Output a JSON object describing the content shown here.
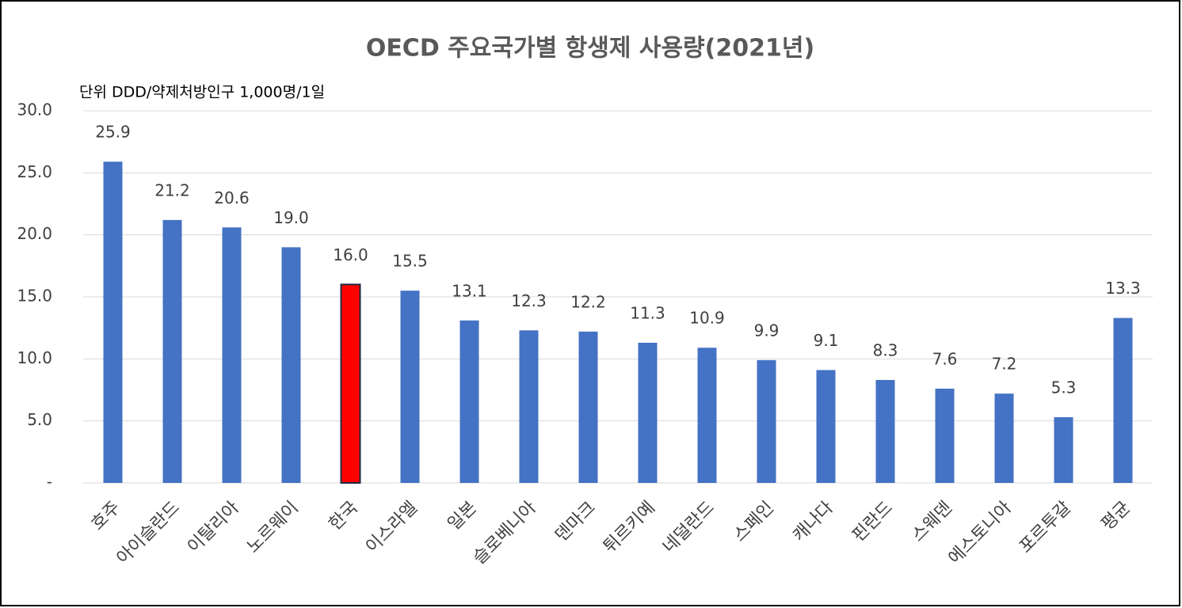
{
  "chart_data": {
    "type": "bar",
    "title": "OECD 주요국가별 항생제 사용량(2021년)",
    "subtitle": "단위  DDD/약제처방인구 1,000명/1일",
    "categories": [
      "호주",
      "아이슬란드",
      "이탈리아",
      "노르웨이",
      "한국",
      "이스라엘",
      "일본",
      "슬로베니아",
      "덴마크",
      "튀르키예",
      "네덜란드",
      "스페인",
      "캐나다",
      "핀란드",
      "스웨덴",
      "에스토니아",
      "포르투갈",
      "평균"
    ],
    "values": [
      25.9,
      21.2,
      20.6,
      19.0,
      16.0,
      15.5,
      13.1,
      12.3,
      12.2,
      11.3,
      10.9,
      9.9,
      9.1,
      8.3,
      7.6,
      7.2,
      5.3,
      13.3
    ],
    "value_labels": [
      "25.9",
      "21.2",
      "20.6",
      "19.0",
      "16.0",
      "15.5",
      "13.1",
      "12.3",
      "12.2",
      "11.3",
      "10.9",
      "9.9",
      "9.1",
      "8.3",
      "7.6",
      "7.2",
      "5.3",
      "13.3"
    ],
    "colors": [
      "#4472c4",
      "#4472c4",
      "#4472c4",
      "#4472c4",
      "#ff0000",
      "#4472c4",
      "#4472c4",
      "#4472c4",
      "#4472c4",
      "#4472c4",
      "#4472c4",
      "#4472c4",
      "#4472c4",
      "#4472c4",
      "#4472c4",
      "#4472c4",
      "#4472c4",
      "#4472c4"
    ],
    "ylim": [
      0,
      30
    ],
    "yticks": [
      {
        "value": 0,
        "label": "-"
      },
      {
        "value": 5,
        "label": "5.0"
      },
      {
        "value": 10,
        "label": "10.0"
      },
      {
        "value": 15,
        "label": "15.0"
      },
      {
        "value": 20,
        "label": "20.0"
      },
      {
        "value": 25,
        "label": "25.0"
      },
      {
        "value": 30,
        "label": "30.0"
      }
    ],
    "grid": true
  }
}
